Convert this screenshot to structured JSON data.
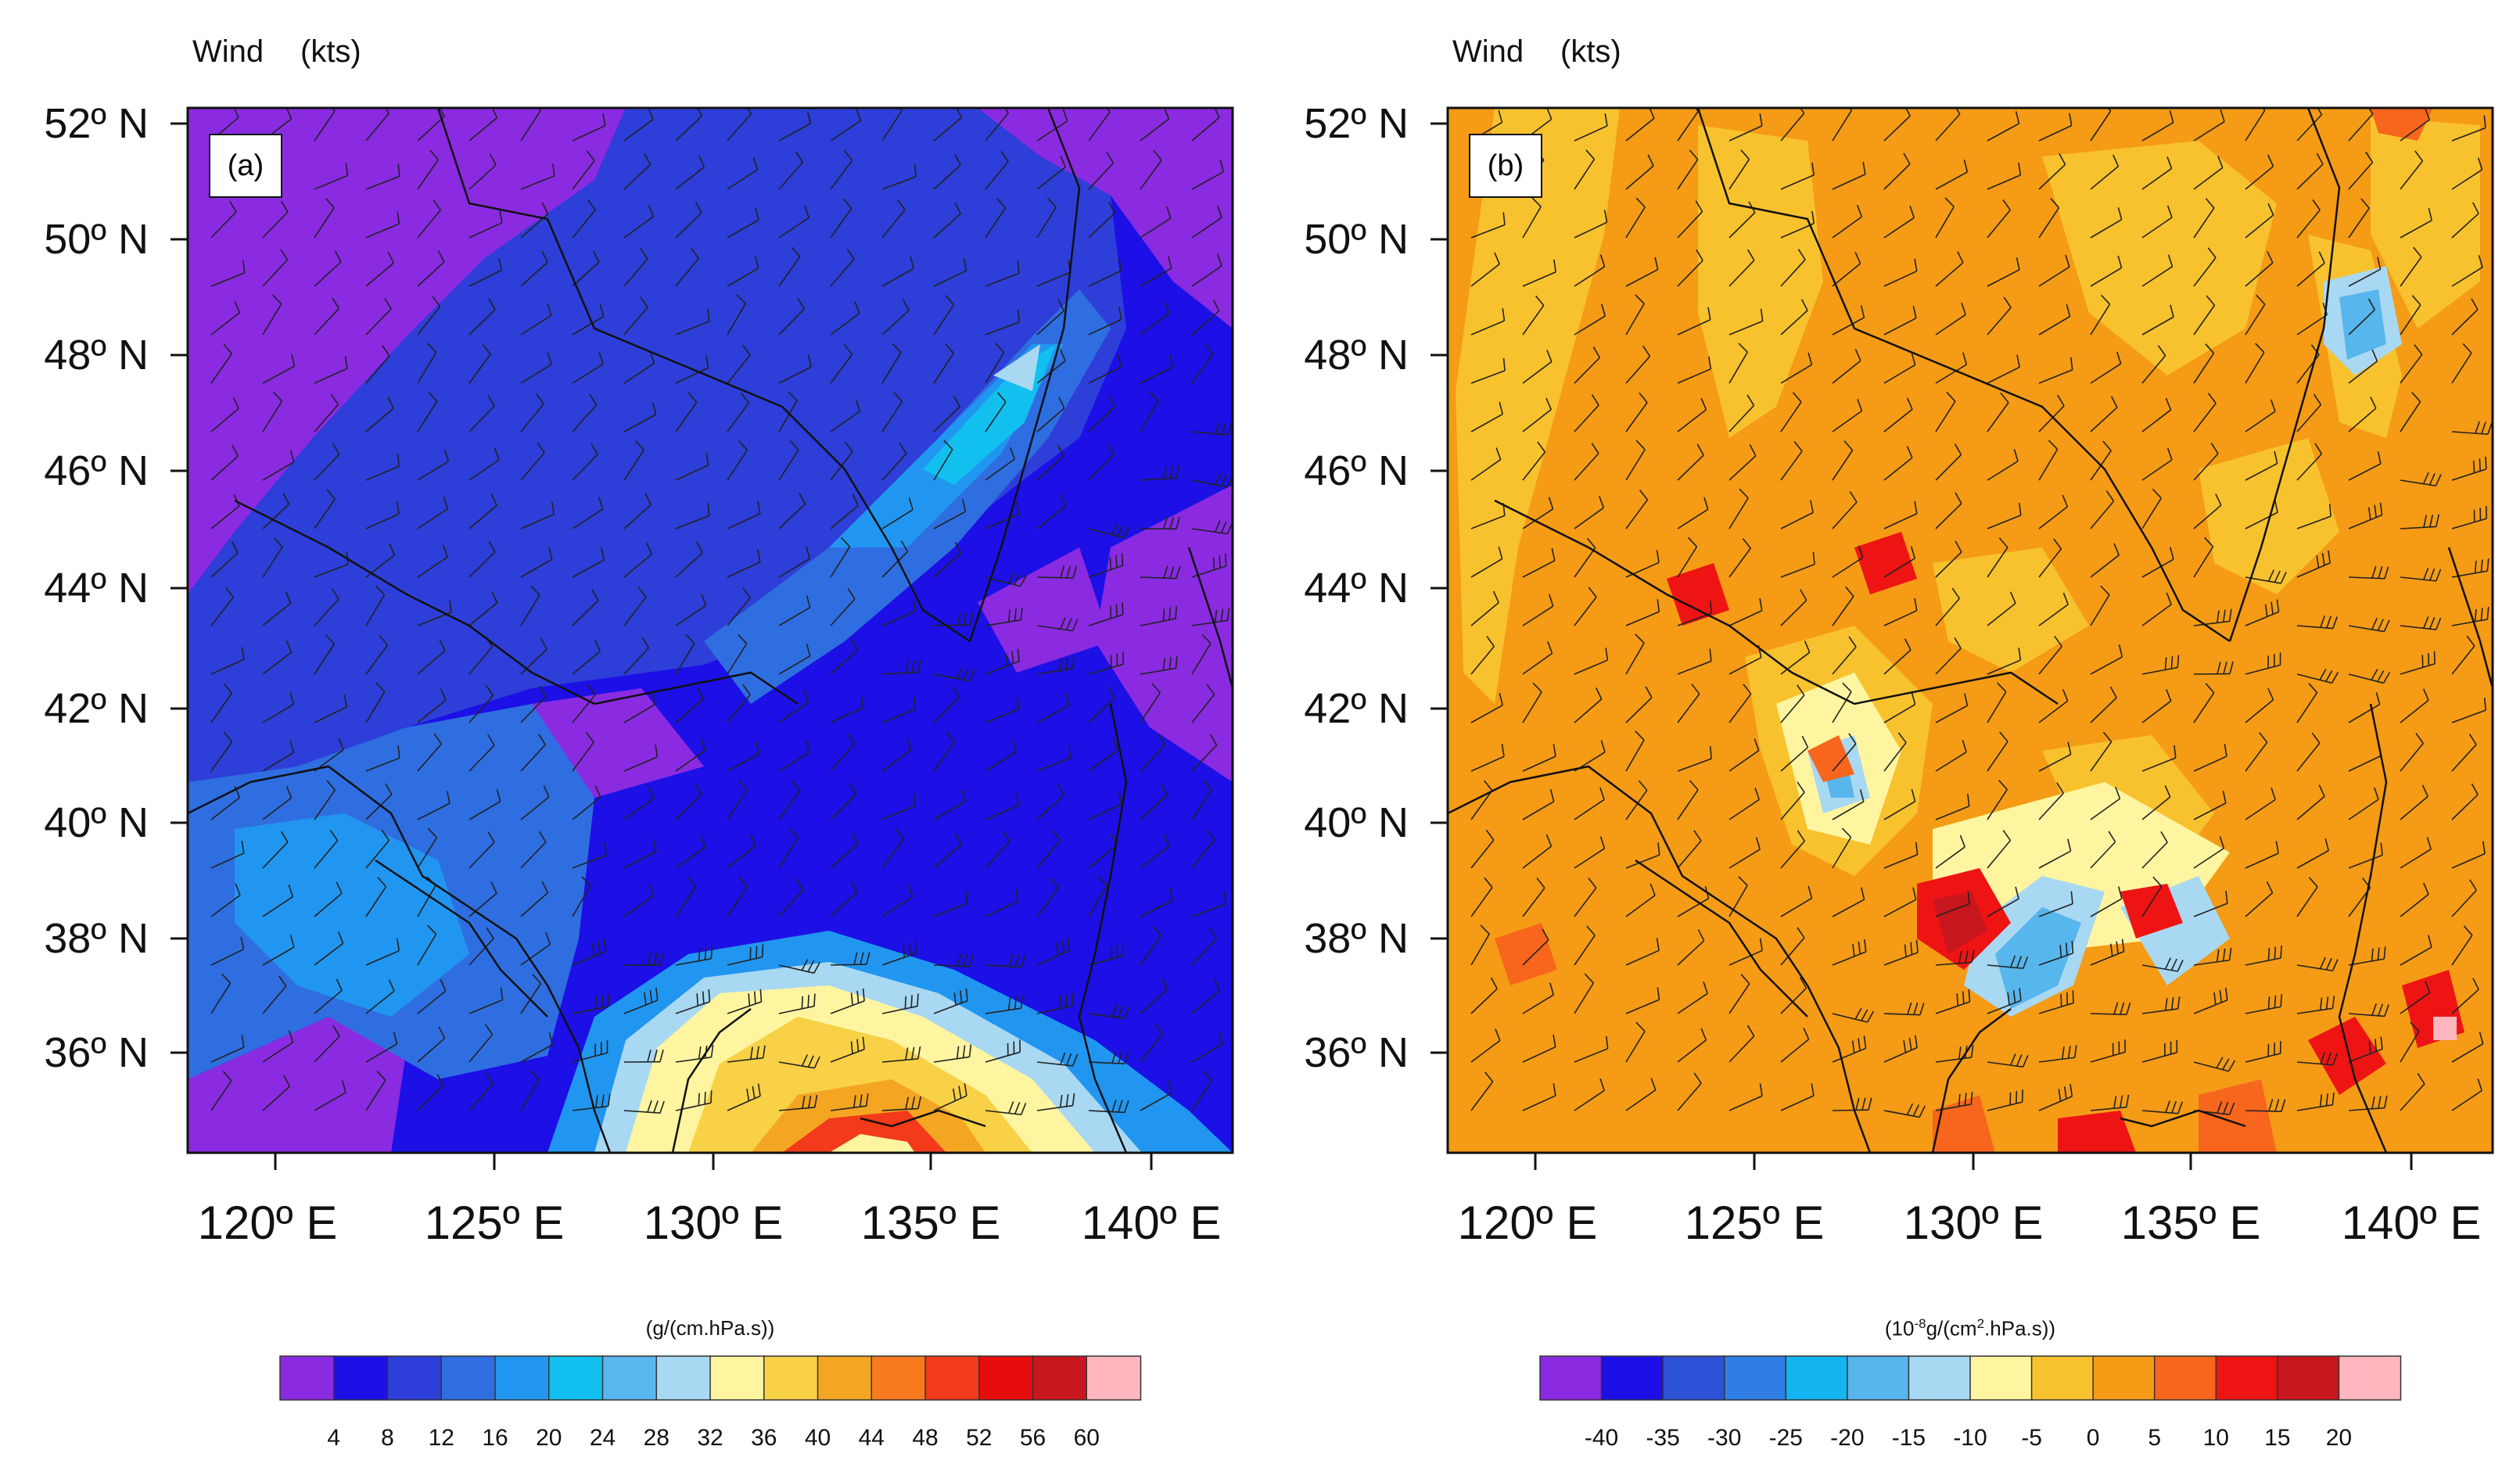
{
  "panels": [
    {
      "id": "a",
      "tag": "(a)",
      "wind_label": "Wind",
      "wind_units": "(kts)",
      "lat_labels": [
        "52º N",
        "50º N",
        "48º N",
        "46º N",
        "44º N",
        "42º N",
        "40º N",
        "38º N",
        "36º N"
      ],
      "lon_labels": [
        "120º E",
        "125º E",
        "130º E",
        "135º E",
        "140º E"
      ],
      "colorbar": {
        "units": "(g/(cm.hPa.s))",
        "tick_labels": [
          "4",
          "8",
          "12",
          "16",
          "20",
          "24",
          "28",
          "32",
          "36",
          "40",
          "44",
          "48",
          "52",
          "56",
          "60"
        ],
        "colors": [
          "#8a2be2",
          "#1c10e6",
          "#2d3fd8",
          "#2f6ee0",
          "#2196f0",
          "#12c0f0",
          "#5ab7ee",
          "#a9d8f2",
          "#fff5a0",
          "#f8d146",
          "#f4a522",
          "#f77b1e",
          "#f33a1a",
          "#e80d0d",
          "#c8161f",
          "#ffb6bf"
        ]
      }
    },
    {
      "id": "b",
      "tag": "(b)",
      "wind_label": "Wind",
      "wind_units": "(kts)",
      "lat_labels": [
        "52º N",
        "50º N",
        "48º N",
        "46º N",
        "44º N",
        "42º N",
        "40º N",
        "38º N",
        "36º N"
      ],
      "lon_labels": [
        "120º E",
        "125º E",
        "130º E",
        "135º E",
        "140º E"
      ],
      "colorbar": {
        "units_prefix": "(10",
        "units_sup1": "-8",
        "units_mid": "g/(cm",
        "units_sup2": "2",
        "units_suffix": ".hPa.s))",
        "tick_labels": [
          "-40",
          "-35",
          "-30",
          "-25",
          "-20",
          "-15",
          "-10",
          "-5",
          "0",
          "5",
          "10",
          "15",
          "20"
        ],
        "colors": [
          "#8a2be2",
          "#1c10e6",
          "#2d52d8",
          "#2f7ee6",
          "#14b4f0",
          "#57b6ec",
          "#a9d8f2",
          "#fff5a0",
          "#f8c22e",
          "#f59b16",
          "#f7661c",
          "#ee1414",
          "#c8161f",
          "#ffb6bf"
        ]
      }
    }
  ]
}
